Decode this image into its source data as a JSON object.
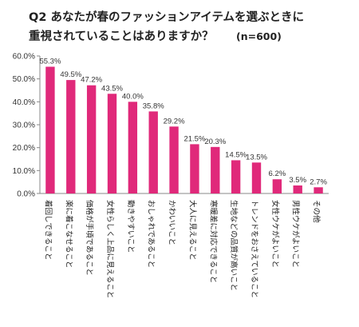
{
  "chart_data": {
    "type": "bar",
    "title_line1": "Q2 あなたが春のファッションアイテムを選ぶときに",
    "title_line2": "重視されていることはありますか？",
    "title_suffix": "(n=600)",
    "categories": [
      "着回しできること",
      "楽に着こなせること",
      "価格が手頃であること",
      "女性らしく上品に見えること",
      "動きやすいこと",
      "おしゃれであること",
      "かわいいこと",
      "大人に見えること",
      "寒暖差に対応できること",
      "生地などの品質が高いこと",
      "トレンドをおさえていること",
      "女性ウケがよいこと",
      "男性ウケがよいこと",
      "その他"
    ],
    "values": [
      55.3,
      49.5,
      47.2,
      43.5,
      40.0,
      35.8,
      29.2,
      21.5,
      20.3,
      14.5,
      13.5,
      6.2,
      3.5,
      2.7
    ],
    "value_labels": [
      "55.3%",
      "49.5%",
      "47.2%",
      "43.5%",
      "40.0%",
      "35.8%",
      "29.2%",
      "21.5%",
      "20.3%",
      "14.5%",
      "13.5%",
      "6.2%",
      "3.5%",
      "2.7%"
    ],
    "yticks": [
      "0.0%",
      "10.0%",
      "20.0%",
      "30.0%",
      "40.0%",
      "50.0%",
      "60.0%"
    ],
    "ylim": [
      0,
      60
    ],
    "grid": false,
    "bar_color": "#e0297a"
  }
}
